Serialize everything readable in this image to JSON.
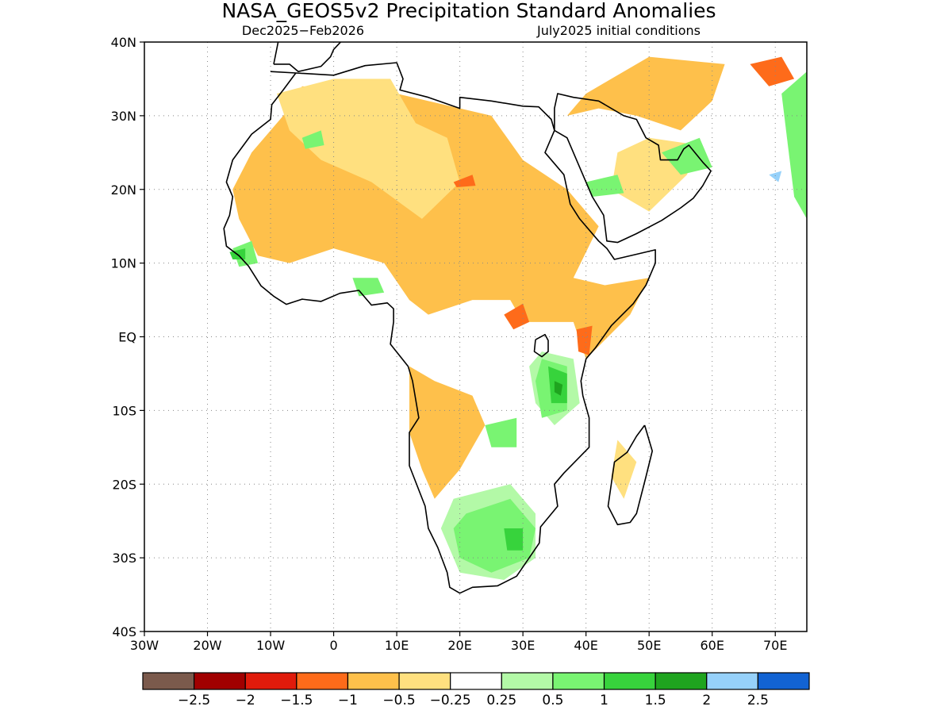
{
  "title": "NASA_GEOS5v2 Precipitation Standard Anomalies",
  "subtitle_left": "Dec2025−Feb2026",
  "subtitle_right": "July2025 initial conditions",
  "map": {
    "lon_range": [
      -30,
      75
    ],
    "lat_range": [
      -40,
      40
    ],
    "lat_ticks": [
      {
        "value": 40,
        "label": "40N"
      },
      {
        "value": 30,
        "label": "30N"
      },
      {
        "value": 20,
        "label": "20N"
      },
      {
        "value": 10,
        "label": "10N"
      },
      {
        "value": 0,
        "label": "EQ"
      },
      {
        "value": -10,
        "label": "10S"
      },
      {
        "value": -20,
        "label": "20S"
      },
      {
        "value": -30,
        "label": "30S"
      },
      {
        "value": -40,
        "label": "40S"
      }
    ],
    "lon_ticks": [
      {
        "value": -30,
        "label": "30W"
      },
      {
        "value": -20,
        "label": "20W"
      },
      {
        "value": -10,
        "label": "10W"
      },
      {
        "value": 0,
        "label": "0"
      },
      {
        "value": 10,
        "label": "10E"
      },
      {
        "value": 20,
        "label": "20E"
      },
      {
        "value": 30,
        "label": "30E"
      },
      {
        "value": 40,
        "label": "40E"
      },
      {
        "value": 50,
        "label": "50E"
      },
      {
        "value": 60,
        "label": "60E"
      },
      {
        "value": 70,
        "label": "70E"
      }
    ],
    "grid": true,
    "coastline": [
      [
        -10,
        36
      ],
      [
        -6,
        35.8
      ],
      [
        0,
        35.5
      ],
      [
        5,
        36.8
      ],
      [
        10,
        37.2
      ],
      [
        11,
        35
      ],
      [
        10.5,
        33.5
      ],
      [
        15,
        32.5
      ],
      [
        20,
        31
      ],
      [
        20,
        32.5
      ],
      [
        25,
        32
      ],
      [
        30,
        31.3
      ],
      [
        32.5,
        31.2
      ],
      [
        34.5,
        29.5
      ],
      [
        35,
        28
      ],
      [
        33.5,
        25
      ],
      [
        36.5,
        22
      ],
      [
        37.5,
        18
      ],
      [
        39,
        16
      ],
      [
        42,
        13
      ],
      [
        43.3,
        12
      ],
      [
        44.5,
        10.5
      ],
      [
        48,
        11.2
      ],
      [
        51,
        11.8
      ],
      [
        51,
        10
      ],
      [
        49.5,
        7
      ],
      [
        47.5,
        4.5
      ],
      [
        44,
        1.5
      ],
      [
        41.5,
        -1.5
      ],
      [
        40,
        -3
      ],
      [
        39.2,
        -6
      ],
      [
        39.5,
        -8
      ],
      [
        40.5,
        -11
      ],
      [
        40.5,
        -15
      ],
      [
        36.5,
        -18.5
      ],
      [
        35,
        -20
      ],
      [
        35.5,
        -23
      ],
      [
        32.8,
        -25.8
      ],
      [
        32.6,
        -28
      ],
      [
        31,
        -30
      ],
      [
        29,
        -32.5
      ],
      [
        26,
        -33.8
      ],
      [
        22,
        -34
      ],
      [
        20,
        -34.8
      ],
      [
        18.4,
        -34
      ],
      [
        18,
        -32
      ],
      [
        16.5,
        -28.6
      ],
      [
        15,
        -26
      ],
      [
        14.5,
        -23
      ],
      [
        12,
        -17.5
      ],
      [
        12,
        -13
      ],
      [
        13.5,
        -11
      ],
      [
        12.5,
        -6
      ],
      [
        11.8,
        -4
      ],
      [
        9,
        -1
      ],
      [
        9.5,
        2
      ],
      [
        9.5,
        3.8
      ],
      [
        8.5,
        4.6
      ],
      [
        6,
        4.3
      ],
      [
        4,
        6.3
      ],
      [
        1,
        5.9
      ],
      [
        -2,
        4.8
      ],
      [
        -5,
        5.1
      ],
      [
        -7.5,
        4.4
      ],
      [
        -9.5,
        5.5
      ],
      [
        -11.5,
        6.9
      ],
      [
        -13.5,
        9.6
      ],
      [
        -15,
        11
      ],
      [
        -17,
        12.3
      ],
      [
        -17.4,
        14.7
      ],
      [
        -16.5,
        16.5
      ],
      [
        -16,
        19
      ],
      [
        -17,
        21
      ],
      [
        -16,
        24
      ],
      [
        -13,
        27.5
      ],
      [
        -10,
        29.5
      ],
      [
        -9.8,
        31.5
      ],
      [
        -8,
        33.5
      ],
      [
        -6,
        35.8
      ],
      [
        -10,
        36
      ]
    ],
    "madagascar": [
      [
        49.3,
        -12
      ],
      [
        50.5,
        -15.5
      ],
      [
        49.5,
        -19
      ],
      [
        48,
        -24
      ],
      [
        47,
        -25.2
      ],
      [
        45,
        -25.5
      ],
      [
        43.5,
        -23
      ],
      [
        44,
        -20
      ],
      [
        44.5,
        -17
      ],
      [
        46.5,
        -15.7
      ],
      [
        48,
        -13.5
      ],
      [
        49.3,
        -12
      ]
    ],
    "arabia": [
      [
        35,
        28
      ],
      [
        37,
        27
      ],
      [
        39,
        23
      ],
      [
        41,
        19
      ],
      [
        42.8,
        16.5
      ],
      [
        43.3,
        13
      ],
      [
        45,
        12.8
      ],
      [
        48,
        14
      ],
      [
        52,
        15.8
      ],
      [
        55,
        17.5
      ],
      [
        57,
        18.8
      ],
      [
        58.5,
        20.5
      ],
      [
        59.8,
        22.5
      ],
      [
        58.5,
        23.7
      ],
      [
        56.3,
        26
      ],
      [
        55.5,
        25.5
      ],
      [
        54.5,
        24
      ],
      [
        51.8,
        24
      ],
      [
        51.5,
        26
      ],
      [
        49.5,
        27
      ],
      [
        48,
        29.5
      ],
      [
        46,
        30
      ],
      [
        42,
        32
      ],
      [
        38,
        32.5
      ],
      [
        35.5,
        33
      ],
      [
        35,
        31
      ],
      [
        35,
        28
      ]
    ],
    "iberia": [
      [
        -9.5,
        37
      ],
      [
        -8.8,
        40
      ],
      [
        -9,
        43.5
      ],
      [
        -4,
        43.5
      ],
      [
        0,
        42.5
      ],
      [
        3.3,
        42
      ],
      [
        0,
        39
      ],
      [
        -0.5,
        38
      ],
      [
        -2,
        36.7
      ],
      [
        -5.6,
        36
      ],
      [
        -7,
        37
      ],
      [
        -9.5,
        37
      ]
    ],
    "lake_victoria": [
      [
        32,
        -0.4
      ],
      [
        33.5,
        0.3
      ],
      [
        34,
        -0.5
      ],
      [
        34,
        -2
      ],
      [
        33,
        -2.7
      ],
      [
        31.8,
        -2
      ],
      [
        32,
        -0.4
      ]
    ],
    "precip_anomaly_regions": [
      {
        "category": "-1..-0.5",
        "color": "#fec04b",
        "points": [
          [
            -5,
            34
          ],
          [
            10,
            33
          ],
          [
            25,
            30
          ],
          [
            30,
            24
          ],
          [
            37,
            20
          ],
          [
            42,
            15
          ],
          [
            38,
            8
          ],
          [
            43,
            7
          ],
          [
            50,
            8
          ],
          [
            47,
            3
          ],
          [
            40,
            -3
          ],
          [
            38,
            2
          ],
          [
            30,
            2
          ],
          [
            28,
            5
          ],
          [
            22,
            5
          ],
          [
            15,
            3
          ],
          [
            12,
            5
          ],
          [
            8,
            10
          ],
          [
            0,
            12
          ],
          [
            -7,
            10
          ],
          [
            -12,
            11
          ],
          [
            -15,
            16
          ],
          [
            -16,
            20
          ],
          [
            -13,
            25
          ],
          [
            -8,
            30
          ]
        ]
      },
      {
        "category": "-1..-0.5",
        "color": "#fec04b",
        "points": [
          [
            12,
            -4
          ],
          [
            16,
            -6
          ],
          [
            22,
            -8
          ],
          [
            24,
            -12
          ],
          [
            20,
            -18
          ],
          [
            16,
            -22
          ],
          [
            14,
            -18
          ],
          [
            12,
            -13
          ]
        ]
      },
      {
        "category": "-1..-0.5",
        "color": "#fec04b",
        "points": [
          [
            37,
            30
          ],
          [
            42,
            31
          ],
          [
            48,
            30
          ],
          [
            55,
            28
          ],
          [
            60,
            32
          ],
          [
            62,
            37
          ],
          [
            50,
            38
          ],
          [
            44,
            35
          ],
          [
            40,
            33
          ]
        ]
      },
      {
        "category": "-0.5..-0.25",
        "color": "#ffe07f",
        "points": [
          [
            -9,
            33
          ],
          [
            0,
            35
          ],
          [
            9,
            35
          ],
          [
            13,
            29
          ],
          [
            18,
            27
          ],
          [
            20,
            21
          ],
          [
            14,
            16
          ],
          [
            6,
            21
          ],
          [
            -2,
            24
          ],
          [
            -7,
            28
          ]
        ]
      },
      {
        "category": "-0.5..-0.25",
        "color": "#ffe07f",
        "points": [
          [
            44,
            20
          ],
          [
            50,
            17
          ],
          [
            56,
            22
          ],
          [
            58,
            26
          ],
          [
            50,
            27
          ],
          [
            45,
            25
          ]
        ]
      },
      {
        "category": "-0.5..-0.25",
        "color": "#ffe07f",
        "points": [
          [
            45,
            -14
          ],
          [
            48,
            -17
          ],
          [
            46,
            -22
          ],
          [
            44,
            -19
          ]
        ]
      },
      {
        "category": "-1.5..-1",
        "color": "#fe6b1a",
        "points": [
          [
            27,
            3
          ],
          [
            30,
            4.5
          ],
          [
            31,
            2
          ],
          [
            28.5,
            1
          ]
        ]
      },
      {
        "category": "-1.5..-1",
        "color": "#fe6b1a",
        "points": [
          [
            38.5,
            1
          ],
          [
            41,
            1.5
          ],
          [
            40.5,
            -2.5
          ],
          [
            38.8,
            -2
          ]
        ]
      },
      {
        "category": "-1.5..-1",
        "color": "#fe6b1a",
        "points": [
          [
            19,
            21
          ],
          [
            22,
            22
          ],
          [
            22.5,
            20.5
          ],
          [
            19.5,
            20.3
          ]
        ]
      },
      {
        "category": "-1.5..-1",
        "color": "#fe6b1a",
        "points": [
          [
            66,
            37
          ],
          [
            71,
            38
          ],
          [
            73,
            35
          ],
          [
            69,
            34
          ]
        ]
      },
      {
        "category": "0.25..0.5",
        "color": "#b3f9a7",
        "points": [
          [
            19,
            -22
          ],
          [
            28,
            -20
          ],
          [
            32,
            -24
          ],
          [
            32,
            -30
          ],
          [
            27,
            -33
          ],
          [
            20,
            -32
          ],
          [
            17,
            -26
          ]
        ]
      },
      {
        "category": "0.25..0.5",
        "color": "#b3f9a7",
        "points": [
          [
            33,
            -2
          ],
          [
            38,
            -3
          ],
          [
            39,
            -9
          ],
          [
            35,
            -12
          ],
          [
            32,
            -9
          ],
          [
            31,
            -4
          ]
        ]
      },
      {
        "category": "0.5..1",
        "color": "#79f472",
        "points": [
          [
            21,
            -24
          ],
          [
            28,
            -22
          ],
          [
            32,
            -26
          ],
          [
            31,
            -30
          ],
          [
            25,
            -32
          ],
          [
            20,
            -30
          ],
          [
            19,
            -26
          ]
        ]
      },
      {
        "category": "0.5..1",
        "color": "#79f472",
        "points": [
          [
            33,
            -3
          ],
          [
            37,
            -4
          ],
          [
            37,
            -10
          ],
          [
            33,
            -11
          ],
          [
            32,
            -6
          ]
        ]
      },
      {
        "category": "0.5..1",
        "color": "#79f472",
        "points": [
          [
            -16,
            12
          ],
          [
            -13,
            13
          ],
          [
            -12,
            10
          ],
          [
            -15,
            9.5
          ]
        ]
      },
      {
        "category": "0.5..1",
        "color": "#79f472",
        "points": [
          [
            3,
            8
          ],
          [
            7,
            8
          ],
          [
            8,
            6
          ],
          [
            4,
            5.5
          ]
        ]
      },
      {
        "category": "0.5..1",
        "color": "#79f472",
        "points": [
          [
            40,
            21
          ],
          [
            45,
            22
          ],
          [
            46,
            19.5
          ],
          [
            41,
            19
          ]
        ]
      },
      {
        "category": "0.5..1",
        "color": "#79f472",
        "points": [
          [
            52,
            25
          ],
          [
            58,
            27
          ],
          [
            60,
            23
          ],
          [
            55,
            22
          ]
        ]
      },
      {
        "category": "0.5..1",
        "color": "#79f472",
        "points": [
          [
            71,
            33
          ],
          [
            75,
            36
          ],
          [
            75,
            16
          ],
          [
            73,
            19
          ],
          [
            72,
            26
          ]
        ]
      },
      {
        "category": "0.5..1",
        "color": "#79f472",
        "points": [
          [
            -5,
            27
          ],
          [
            -2,
            28
          ],
          [
            -1.5,
            26
          ],
          [
            -4.5,
            25.5
          ]
        ]
      },
      {
        "category": "0.5..1",
        "color": "#79f472",
        "points": [
          [
            24,
            -12
          ],
          [
            29,
            -11
          ],
          [
            29,
            -15
          ],
          [
            25,
            -15
          ]
        ]
      },
      {
        "category": "1..1.5",
        "color": "#37d33c",
        "points": [
          [
            34,
            -4
          ],
          [
            37,
            -5
          ],
          [
            37,
            -9
          ],
          [
            34.5,
            -9
          ]
        ]
      },
      {
        "category": "1..1.5",
        "color": "#37d33c",
        "points": [
          [
            27,
            -26
          ],
          [
            30,
            -26
          ],
          [
            30,
            -29
          ],
          [
            27.5,
            -29
          ]
        ]
      },
      {
        "category": "1..1.5",
        "color": "#37d33c",
        "points": [
          [
            -16.5,
            11.5
          ],
          [
            -14,
            12
          ],
          [
            -14,
            10.5
          ],
          [
            -16,
            10.5
          ]
        ]
      },
      {
        "category": "1.5..2",
        "color": "#1fa41f",
        "points": [
          [
            35,
            -6
          ],
          [
            36.3,
            -6.5
          ],
          [
            36,
            -8
          ],
          [
            35,
            -7.5
          ]
        ]
      },
      {
        "category": "2..2.5",
        "color": "#96d1fa",
        "points": [
          [
            69,
            22
          ],
          [
            71,
            22.5
          ],
          [
            70.5,
            21
          ]
        ]
      }
    ]
  },
  "colorbar": {
    "colors": [
      "#7b5a4c",
      "#a10000",
      "#e01b0b",
      "#fe6b1a",
      "#fec04b",
      "#ffe07f",
      "#ffffff",
      "#b3f9a7",
      "#79f472",
      "#37d33c",
      "#1fa41f",
      "#96d1fa",
      "#1263d3"
    ],
    "labels": [
      "−2.5",
      "−2",
      "−1.5",
      "−1",
      "−0.5",
      "−0.25",
      "0.25",
      "0.5",
      "1",
      "1.5",
      "2",
      "2.5"
    ]
  }
}
